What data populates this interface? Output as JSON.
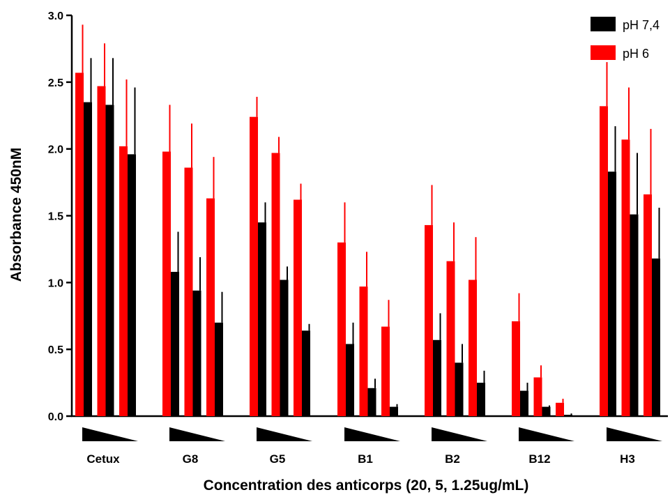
{
  "chart_data": {
    "type": "bar",
    "title": "",
    "xlabel": "Concentration des anticorps (20, 5, 1.25ug/mL)",
    "ylabel": "Absorbance 450nM",
    "ylim": [
      0,
      3.0
    ],
    "yticks": [
      "0.0",
      "0.5",
      "1.0",
      "1.5",
      "2.0",
      "2.5",
      "3.0"
    ],
    "grid": false,
    "legend_position": "top-right",
    "groups": [
      "Cetux",
      "G8",
      "G5",
      "B1",
      "B2",
      "B12",
      "H3"
    ],
    "concentrations": [
      "20",
      "5",
      "1.25"
    ],
    "series": [
      {
        "name": "pH 6",
        "color": "#ff0000",
        "values": [
          [
            2.57,
            2.47,
            2.02
          ],
          [
            1.98,
            1.86,
            1.63
          ],
          [
            2.24,
            1.97,
            1.62
          ],
          [
            1.3,
            0.97,
            0.67
          ],
          [
            1.43,
            1.16,
            1.02
          ],
          [
            0.71,
            0.29,
            0.1
          ],
          [
            2.32,
            2.07,
            1.66
          ]
        ],
        "errors": [
          [
            0.36,
            0.32,
            0.5
          ],
          [
            0.35,
            0.33,
            0.31
          ],
          [
            0.15,
            0.12,
            0.12
          ],
          [
            0.3,
            0.26,
            0.2
          ],
          [
            0.3,
            0.29,
            0.32
          ],
          [
            0.21,
            0.09,
            0.03
          ],
          [
            0.33,
            0.39,
            0.49
          ]
        ]
      },
      {
        "name": "pH 7,4",
        "color": "#000000",
        "values": [
          [
            2.35,
            2.33,
            1.96
          ],
          [
            1.08,
            0.94,
            0.7
          ],
          [
            1.45,
            1.02,
            0.64
          ],
          [
            0.54,
            0.21,
            0.07
          ],
          [
            0.57,
            0.4,
            0.25
          ],
          [
            0.19,
            0.07,
            0.01
          ],
          [
            1.83,
            1.51,
            1.18
          ]
        ],
        "errors": [
          [
            0.33,
            0.35,
            0.5
          ],
          [
            0.3,
            0.25,
            0.23
          ],
          [
            0.15,
            0.1,
            0.05
          ],
          [
            0.16,
            0.07,
            0.02
          ],
          [
            0.2,
            0.14,
            0.09
          ],
          [
            0.06,
            0.01,
            0.01
          ],
          [
            0.34,
            0.46,
            0.38
          ]
        ]
      }
    ]
  }
}
